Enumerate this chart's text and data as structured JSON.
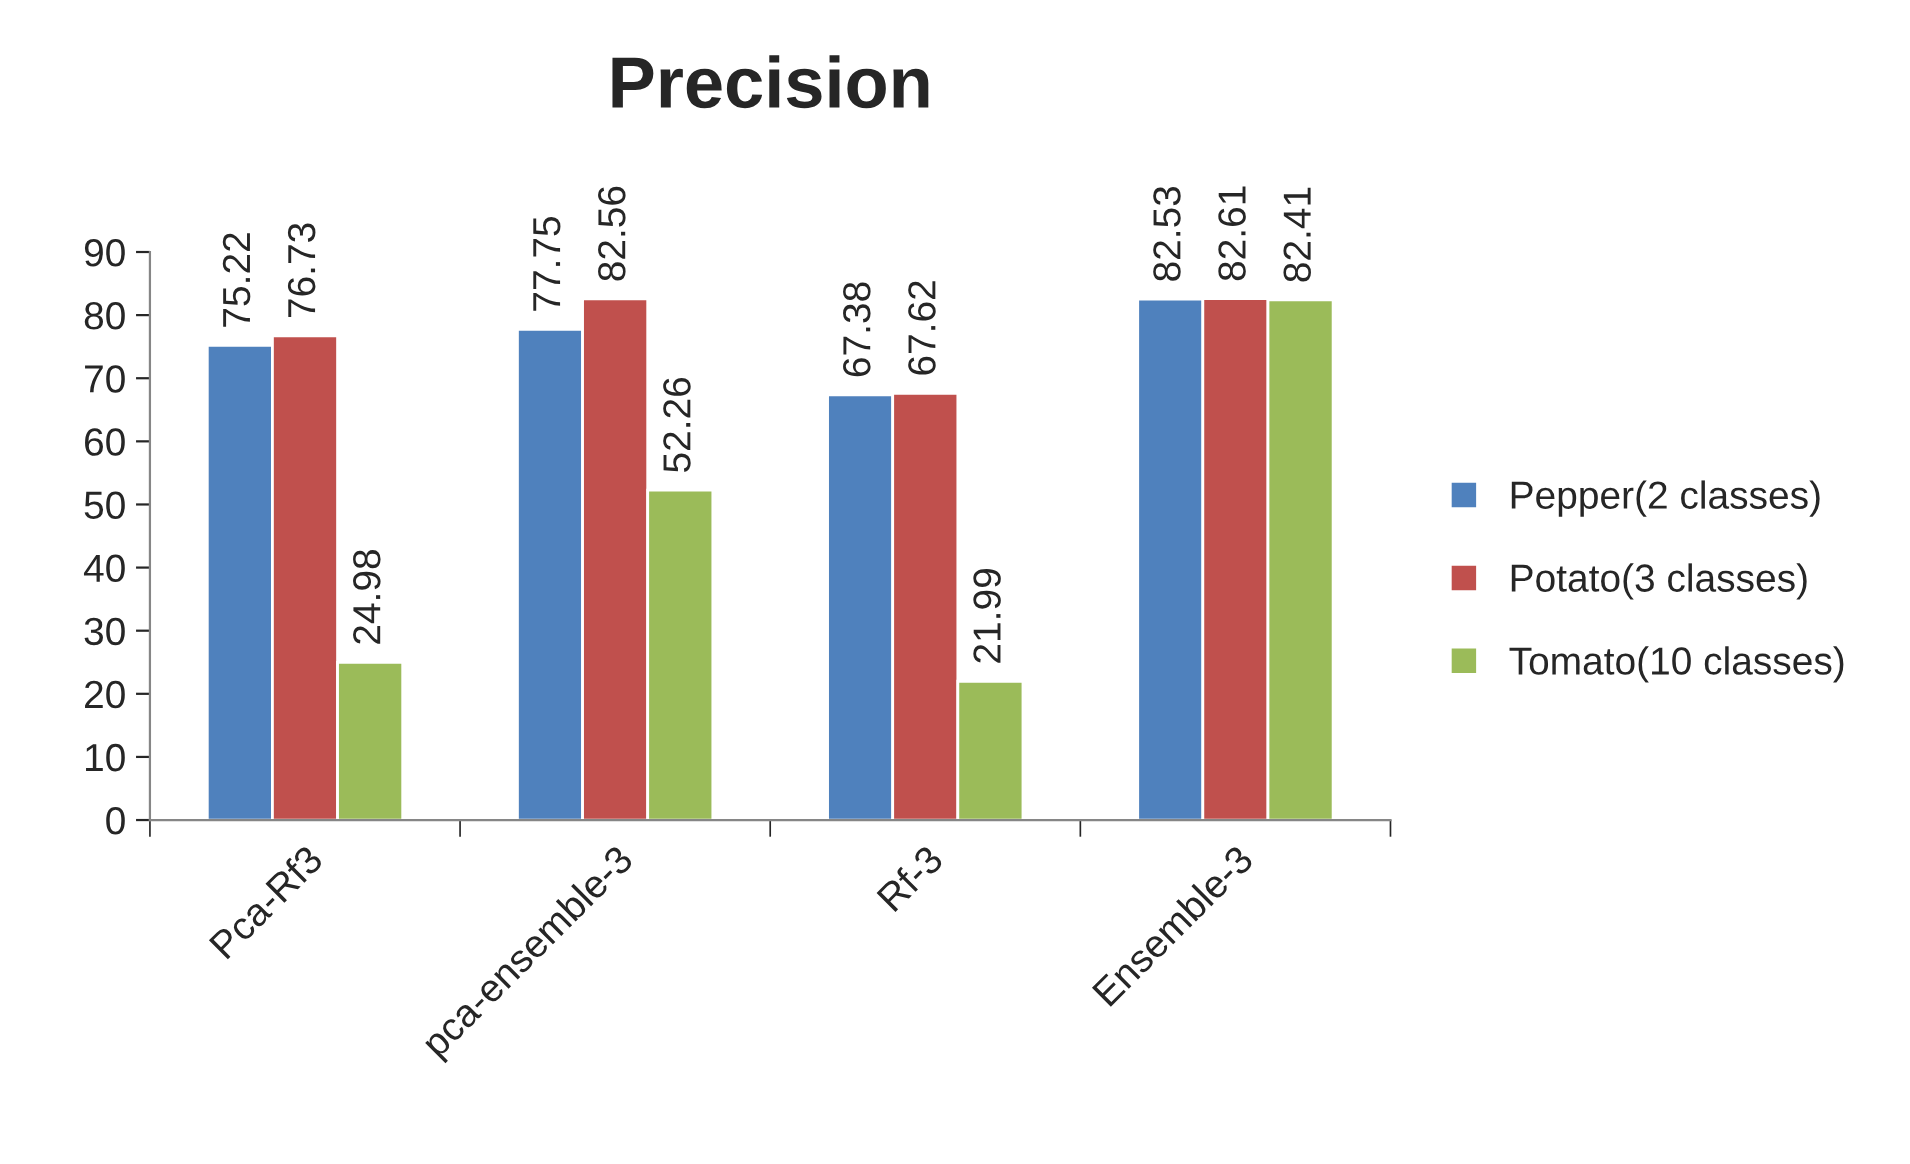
{
  "chart_data": {
    "type": "bar",
    "title": "Precision",
    "categories": [
      "Pca-Rf3",
      "pca-ensemble-3",
      "Rf-3",
      "Ensemble-3"
    ],
    "series": [
      {
        "name": "Pepper(2 classes)",
        "color": "#4f81bd",
        "values": [
          75.22,
          77.75,
          67.38,
          82.53
        ]
      },
      {
        "name": "Potato(3 classes)",
        "color": "#c0504d",
        "values": [
          76.73,
          82.56,
          67.62,
          82.61
        ]
      },
      {
        "name": "Tomato(10 classes)",
        "color": "#9bbb59",
        "values": [
          24.98,
          52.26,
          21.99,
          82.41
        ]
      }
    ],
    "ylim": [
      0,
      90
    ],
    "yticks": [
      0,
      10,
      20,
      30,
      40,
      50,
      60,
      70,
      80,
      90
    ],
    "data_labels": true,
    "grid": false,
    "legend": "right"
  }
}
